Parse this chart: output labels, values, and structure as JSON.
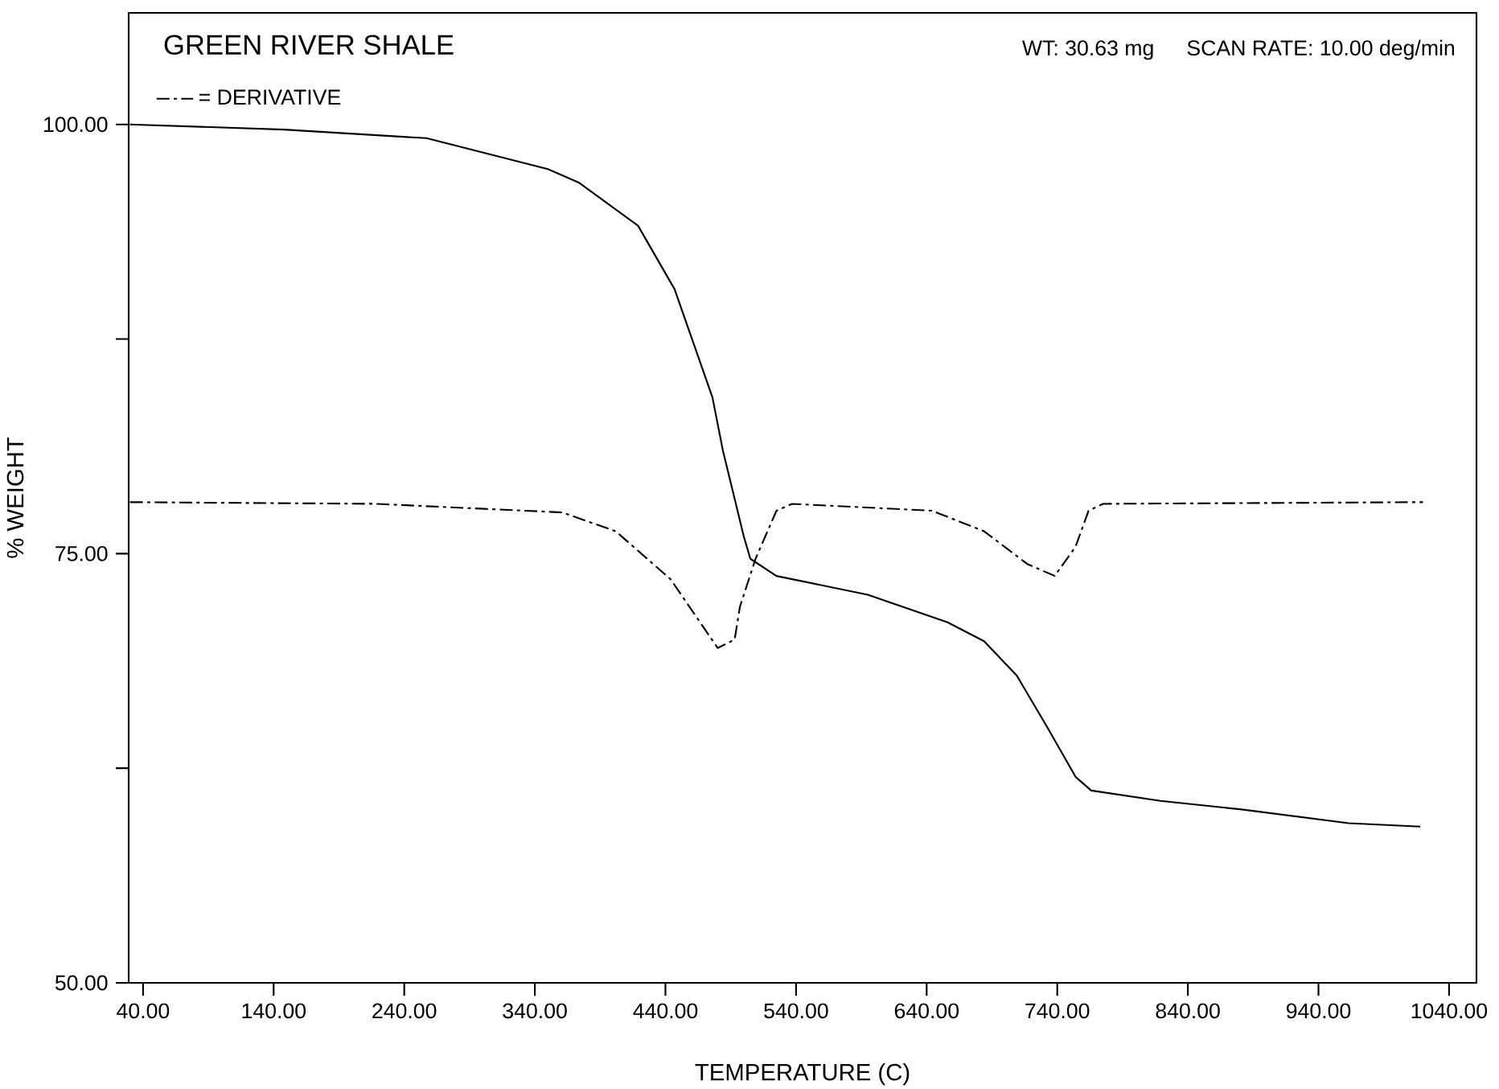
{
  "chart_data": {
    "type": "line",
    "title": "GREEN RIVER SHALE",
    "annotations": [
      "WT: 30.63 mg",
      "SCAN RATE: 10.00 deg/min"
    ],
    "xlabel": "TEMPERATURE (C)",
    "ylabel": "% WEIGHT",
    "xlim": [
      29,
      1061
    ],
    "ylim": [
      50,
      106.5
    ],
    "xticks": [
      {
        "value": 40,
        "label": "40.00"
      },
      {
        "value": 140,
        "label": "140.00"
      },
      {
        "value": 240,
        "label": "240.00"
      },
      {
        "value": 340,
        "label": "340.00"
      },
      {
        "value": 440,
        "label": "440.00"
      },
      {
        "value": 540,
        "label": "540.00"
      },
      {
        "value": 640,
        "label": "640.00"
      },
      {
        "value": 740,
        "label": "740.00"
      },
      {
        "value": 840,
        "label": "840.00"
      },
      {
        "value": 940,
        "label": "940.00"
      },
      {
        "value": 1040,
        "label": "1040.00"
      }
    ],
    "yticks": [
      {
        "value": 50,
        "label": "50.00"
      },
      {
        "value": 62.5,
        "label": null
      },
      {
        "value": 75,
        "label": "75.00"
      },
      {
        "value": 87.5,
        "label": null
      },
      {
        "value": 100,
        "label": "100.00"
      }
    ],
    "grid": false,
    "legend": "top left",
    "series": [
      {
        "color": "#000000",
        "line_style": "solid",
        "x": [
          30,
          148,
          257,
          350,
          374,
          419,
          447,
          476,
          484,
          500,
          505,
          525,
          595,
          656,
          684,
          709,
          733,
          754,
          766,
          819,
          881,
          963,
          1018
        ],
        "values": [
          100.0,
          99.7,
          99.2,
          97.4,
          96.6,
          94.1,
          90.4,
          84.1,
          81.0,
          76.0,
          74.7,
          73.7,
          72.6,
          71.0,
          69.9,
          67.9,
          64.8,
          62.0,
          61.2,
          60.6,
          60.1,
          59.3,
          59.1
        ]
      },
      {
        "name": "= DERIVATIVE",
        "color": "#000000",
        "line_style": "dashed",
        "x": [
          30,
          218,
          361,
          402,
          444,
          480,
          493,
          497,
          509,
          525,
          537,
          644,
          684,
          717,
          738,
          754,
          764,
          775,
          1020
        ],
        "values": [
          78.0,
          77.9,
          77.4,
          76.3,
          73.5,
          69.5,
          70.0,
          71.9,
          74.7,
          77.5,
          77.9,
          77.5,
          76.3,
          74.4,
          73.7,
          75.4,
          77.5,
          77.9,
          78.0
        ]
      }
    ]
  }
}
